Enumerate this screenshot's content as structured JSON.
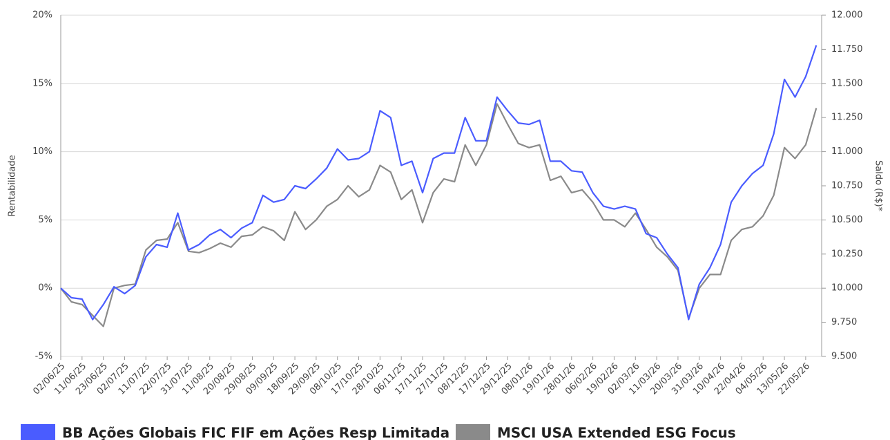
{
  "chart_data": {
    "type": "line",
    "y_label": "Rentabilidade",
    "y2_label": "Saldo (R$)*",
    "categories": [
      "02/06/25",
      null,
      "11/06/25",
      null,
      "23/06/25",
      null,
      "02/07/25",
      null,
      "11/07/25",
      null,
      "22/07/25",
      null,
      "31/07/25",
      null,
      "11/08/25",
      null,
      "20/08/25",
      null,
      "29/08/25",
      null,
      "09/09/25",
      null,
      "18/09/25",
      null,
      "29/09/25",
      null,
      "08/10/25",
      null,
      "17/10/25",
      null,
      "28/10/25",
      null,
      "06/11/25",
      null,
      "17/11/25",
      null,
      "27/11/25",
      null,
      "08/12/25",
      null,
      "17/12/25",
      null,
      "29/12/25",
      null,
      "08/01/26",
      null,
      "19/01/26",
      null,
      "28/01/26",
      null,
      "06/02/26",
      null,
      "19/02/26",
      null,
      "02/03/26",
      null,
      "11/03/26",
      null,
      "20/03/26",
      null,
      "31/03/26",
      null,
      "10/04/26",
      null,
      "22/04/26",
      null,
      "04/05/26",
      null,
      "13/05/26",
      null,
      "22/05/26",
      null
    ],
    "series": [
      {
        "name": "BB Ações Globais FIC FIF em Ações Resp Limitada",
        "color": "#4a5cff",
        "values": [
          0,
          -0.7,
          -0.8,
          -2.3,
          -1.2,
          0.1,
          -0.4,
          0.2,
          2.3,
          3.2,
          3.0,
          5.5,
          2.8,
          3.2,
          3.9,
          4.3,
          3.7,
          4.4,
          4.8,
          6.8,
          6.3,
          6.5,
          7.5,
          7.3,
          8.0,
          8.8,
          10.2,
          9.4,
          9.5,
          10.0,
          13.0,
          12.5,
          9.0,
          9.3,
          7.0,
          9.5,
          9.9,
          9.9,
          12.5,
          10.8,
          10.8,
          14.0,
          13.0,
          12.1,
          12.0,
          12.3,
          9.3,
          9.3,
          8.6,
          8.5,
          7.0,
          6.0,
          5.8,
          6.0,
          5.8,
          4.0,
          3.7,
          2.5,
          1.5,
          -2.3,
          0.3,
          1.5,
          3.2,
          6.3,
          7.5,
          8.4,
          9.0,
          11.3,
          15.3,
          14.0,
          15.5,
          17.8
        ]
      },
      {
        "name": "MSCI USA Extended ESG Focus",
        "color": "#8a8a8a",
        "values": [
          0,
          -1.0,
          -1.2,
          -2.0,
          -2.8,
          0.0,
          0.2,
          0.3,
          2.8,
          3.5,
          3.6,
          4.8,
          2.7,
          2.6,
          2.9,
          3.3,
          3.0,
          3.8,
          3.9,
          4.5,
          4.2,
          3.5,
          5.6,
          4.3,
          5.0,
          6.0,
          6.5,
          7.5,
          6.7,
          7.2,
          9.0,
          8.5,
          6.5,
          7.2,
          4.8,
          7.0,
          8.0,
          7.8,
          10.5,
          9.0,
          10.5,
          13.5,
          12.0,
          10.6,
          10.3,
          10.5,
          7.9,
          8.2,
          7.0,
          7.2,
          6.3,
          5.0,
          5.0,
          4.5,
          5.5,
          4.3,
          3.0,
          2.3,
          1.3,
          -2.2,
          0.0,
          1.0,
          1.0,
          3.5,
          4.3,
          4.5,
          5.3,
          6.8,
          10.3,
          9.5,
          10.5,
          13.2
        ]
      }
    ],
    "ylim": [
      -5,
      20
    ],
    "yticks": [
      {
        "value": -5,
        "label": "-5%"
      },
      {
        "value": 0,
        "label": "0%"
      },
      {
        "value": 5,
        "label": "5%"
      },
      {
        "value": 10,
        "label": "10%"
      },
      {
        "value": 15,
        "label": "15%"
      },
      {
        "value": 20,
        "label": "20%"
      }
    ],
    "y2lim": [
      9500,
      12000
    ],
    "y2ticks": [
      {
        "value": 9500,
        "label": "9.500"
      },
      {
        "value": 9750,
        "label": "9.750"
      },
      {
        "value": 10000,
        "label": "10.000"
      },
      {
        "value": 10250,
        "label": "10.250"
      },
      {
        "value": 10500,
        "label": "10.500"
      },
      {
        "value": 10750,
        "label": "10.750"
      },
      {
        "value": 11000,
        "label": "11.000"
      },
      {
        "value": 11250,
        "label": "11.250"
      },
      {
        "value": 11500,
        "label": "11.500"
      },
      {
        "value": 11750,
        "label": "11.750"
      },
      {
        "value": 12000,
        "label": "12.000"
      }
    ],
    "grid": true
  }
}
